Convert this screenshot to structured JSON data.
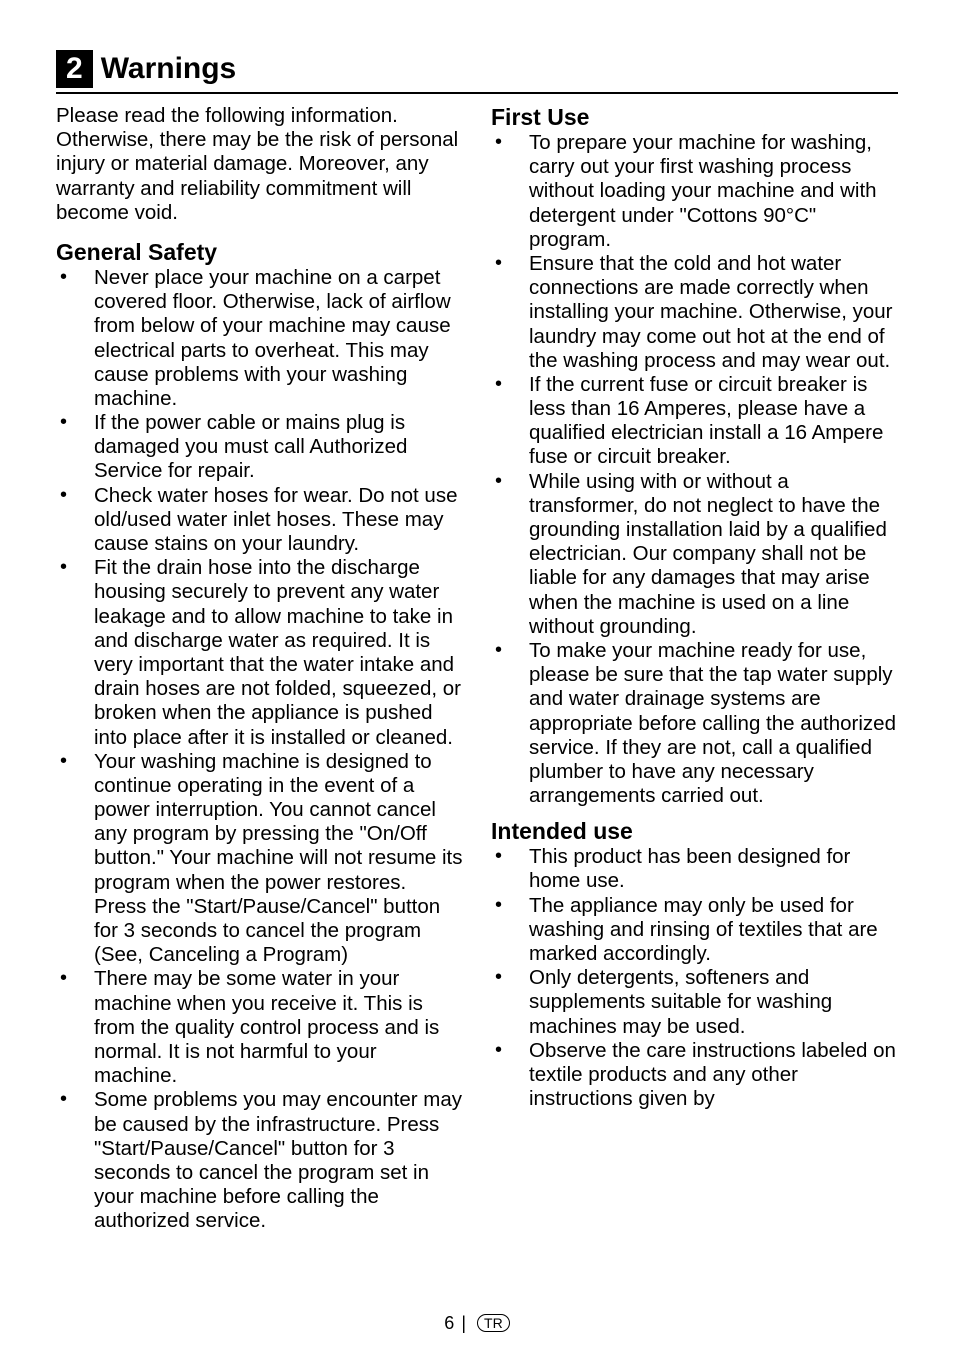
{
  "section": {
    "number": "2",
    "title": "Warnings"
  },
  "intro": "Please read the following information. Otherwise, there may be the risk of personal injury or material damage. Moreover, any warranty and reliability commitment will become void.",
  "general_safety": {
    "heading": "General Safety",
    "items": [
      "Never place your machine on a carpet covered floor. Otherwise, lack of airflow from below of your machine may cause electrical parts to overheat. This may cause problems with your washing machine.",
      "If the power cable or mains plug is damaged you must call Authorized Service for repair.",
      "Check water hoses for wear. Do not use old/used water inlet hoses. These may cause stains on your laundry.",
      "Fit the drain hose into the discharge housing securely to prevent any water leakage and to allow machine to take in and discharge water as required. It is very important that the water intake and drain hoses are not folded, squeezed, or broken when the appliance is pushed into place after it is installed or cleaned.",
      "Your washing machine is designed to continue operating in the event of a power interruption. You cannot cancel any program by pressing the \"On/Off button.\" Your machine will not resume its program when the power restores. Press the \"Start/Pause/Cancel\" button for 3 seconds to cancel the program (See, Canceling a Program)",
      "There may be some water in your machine when you receive it. This is from the quality control process and is normal. It is not harmful to your machine.",
      "Some problems you may encounter may be caused by the infrastructure. Press \"Start/Pause/Cancel\" button for 3 seconds to cancel the program set in your machine before calling the authorized service."
    ]
  },
  "first_use": {
    "heading": "First Use",
    "items": [
      "To prepare your machine for washing, carry out your first washing process without loading your machine and with detergent under \"Cottons 90°C\" program.",
      "Ensure that the cold and hot water connections are made correctly when installing your machine. Otherwise, your laundry may come out hot at the end of the washing process and may wear out.",
      "If the current fuse or circuit breaker is less than 16 Amperes, please have a qualified electrician install a 16 Ampere fuse or circuit breaker.",
      "While using with or without a transformer, do not neglect to have the grounding installation laid by a qualified electrician. Our company shall not be liable for any damages that may arise when the machine is used on a line without grounding.",
      "To make your machine ready for use, please be sure that the tap water supply and water drainage systems are appropriate before calling the authorized service. If they are not, call a qualified plumber to have any necessary arrangements carried out."
    ]
  },
  "intended_use": {
    "heading": "Intended use",
    "items": [
      "This product has been designed for home use.",
      "The appliance may only be used for washing and rinsing of textiles that are marked accordingly.",
      "Only detergents, softeners and supplements suitable for washing machines may be used.",
      "Observe the care instructions labeled on textile products and any other instructions given by"
    ]
  },
  "footer": {
    "page": "6",
    "region": "TR"
  }
}
